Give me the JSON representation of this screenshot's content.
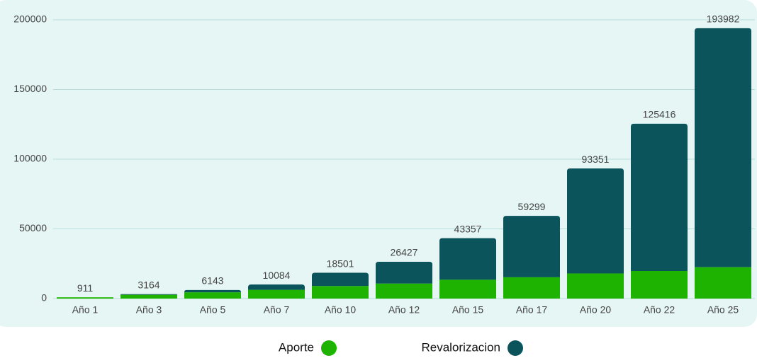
{
  "chart_data": {
    "type": "stacked_bar",
    "categories": [
      "Año 1",
      "Año 3",
      "Año 5",
      "Año 7",
      "Año 10",
      "Año 12",
      "Año 15",
      "Año 17",
      "Año 20",
      "Año 22",
      "Año 25"
    ],
    "series": [
      {
        "name": "Aporte",
        "color": "#1db300",
        "values": [
          900,
          2700,
          4500,
          6300,
          9000,
          10800,
          13500,
          15300,
          18000,
          19800,
          22500
        ]
      },
      {
        "name": "Revalorizacion",
        "color": "#0b545c",
        "values": [
          11,
          464,
          1643,
          3784,
          9501,
          15627,
          29857,
          43999,
          75351,
          105616,
          171482
        ]
      }
    ],
    "totals": [
      911,
      3164,
      6143,
      10084,
      18501,
      26427,
      43357,
      59299,
      93351,
      125416,
      193982
    ],
    "ylim": [
      0,
      200000
    ],
    "yticks": [
      0,
      50000,
      100000,
      150000,
      200000
    ],
    "grid": true
  }
}
